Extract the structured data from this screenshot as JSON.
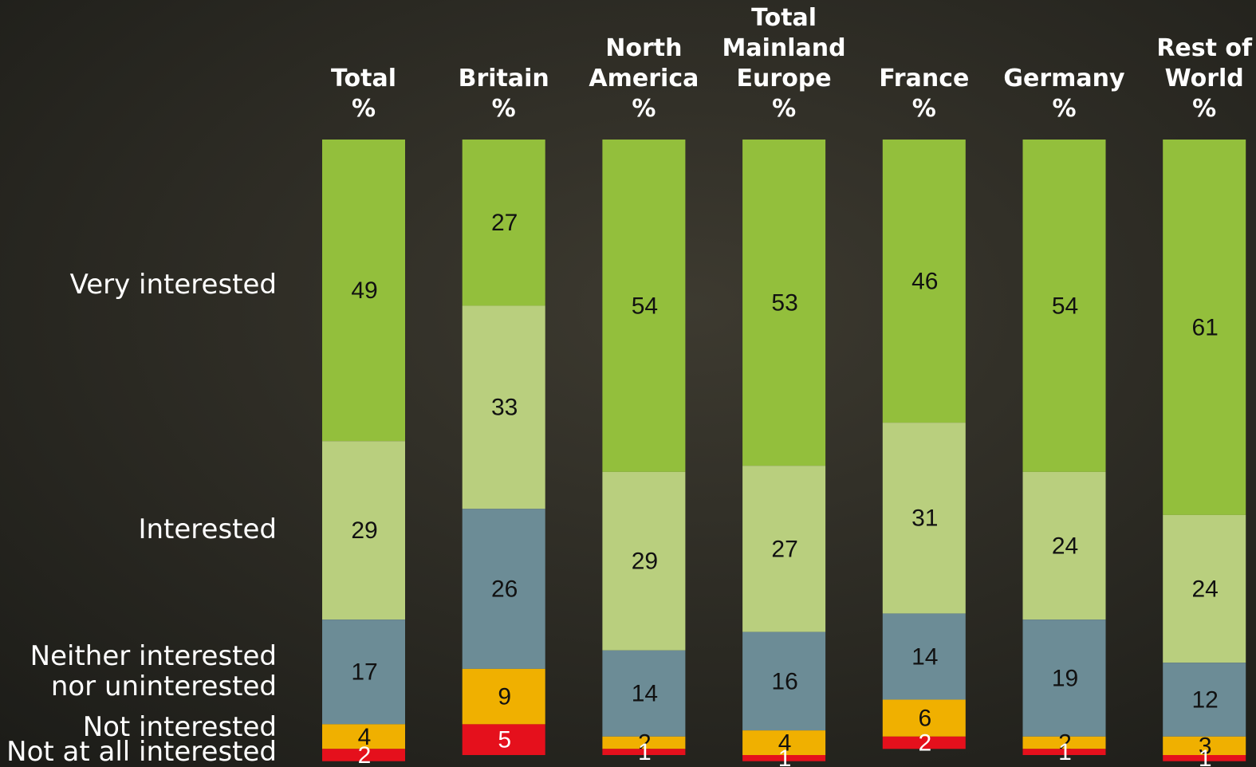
{
  "chart_data": {
    "type": "stacked-bar",
    "categories": [
      "Total\n%",
      "Britain\n%",
      "North\nAmerica\n%",
      "Total\nMainland\nEurope\n%",
      "France\n%",
      "Germany\n%",
      "Rest of\nWorld\n%"
    ],
    "series": [
      {
        "name": "Very interested",
        "color": "#93bf3c",
        "values": [
          49,
          27,
          54,
          53,
          46,
          54,
          61
        ]
      },
      {
        "name": "Interested",
        "color": "#b9cf7e",
        "values": [
          29,
          33,
          29,
          27,
          31,
          24,
          24
        ]
      },
      {
        "name": "Neither interested\nnor uninterested",
        "color": "#6c8c96",
        "values": [
          17,
          26,
          14,
          16,
          14,
          19,
          12
        ]
      },
      {
        "name": "Not interested",
        "color": "#f0b000",
        "values": [
          4,
          9,
          2,
          4,
          6,
          2,
          3
        ]
      },
      {
        "name": "Not at all interested",
        "color": "#e5101c",
        "values": [
          2,
          5,
          1,
          1,
          2,
          1,
          1
        ]
      }
    ]
  }
}
